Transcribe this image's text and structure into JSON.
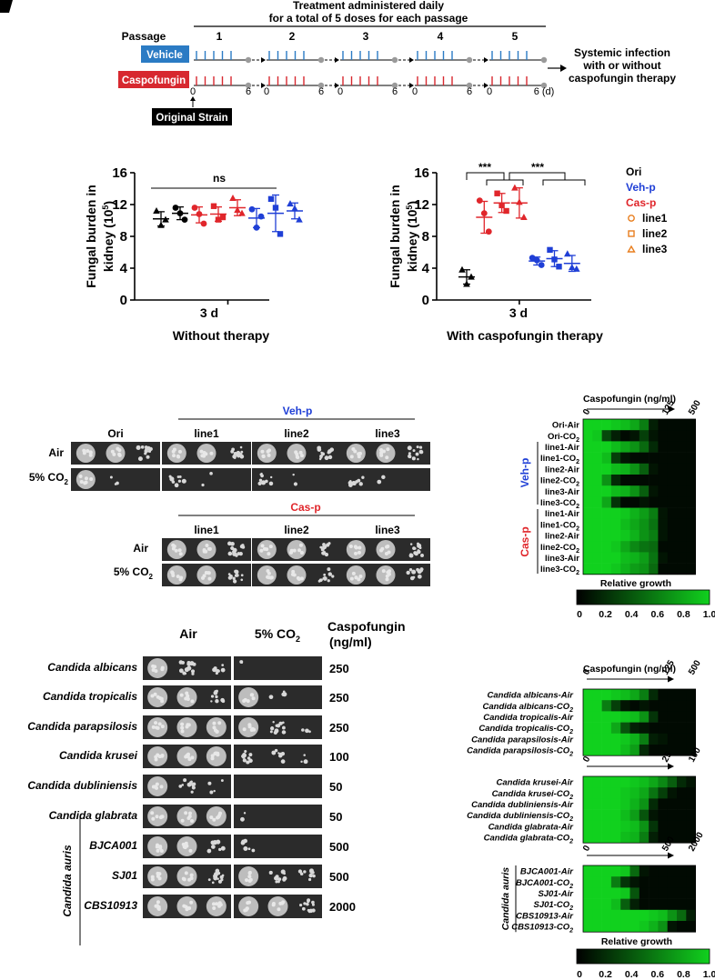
{
  "panel_a": {
    "passage_label": "Passage",
    "header_line1": "Treatment administered daily",
    "header_line2": "for a total of 5 doses for each passage",
    "passages": [
      "1",
      "2",
      "3",
      "4",
      "5"
    ],
    "vehicle_label": "Vehicle",
    "caspofungin_label": "Caspofungin",
    "tick_start": "0",
    "tick_end": "6",
    "tick_end_last": "6 (d)",
    "original_strain": "Original Strain",
    "outcome_line1": "Systemic infection",
    "outcome_line2": "with or without",
    "outcome_line3": "caspofungin therapy",
    "colors": {
      "vehicle": "#2b7bc4",
      "caspofungin": "#d7282f",
      "dot": "#9a9a9a"
    }
  },
  "panel_b": {
    "y_label_line1": "Fungal burden in",
    "y_label_line2": "kidney (10",
    "y_label_sup": "5",
    "y_label_close": ")",
    "ns_label": "ns",
    "sig_label": "***",
    "x_tick": "3 d",
    "left_title": "Without therapy",
    "right_title": "With caspofungin therapy",
    "legend": {
      "ori": "Ori",
      "veh": "Veh-p",
      "cas": "Cas-p",
      "line1": "line1",
      "line2": "line2",
      "line3": "line3"
    },
    "colors": {
      "ori": "#000000",
      "veh": "#1f3fd6",
      "cas": "#e0262b",
      "marker": "#e87e1e"
    }
  },
  "chart_data": [
    {
      "type": "scatter",
      "title": "Without therapy",
      "ylabel": "Fungal burden in kidney (10^5)",
      "xlabel": "3 d",
      "ylim": [
        0,
        16
      ],
      "yticks": [
        0,
        4,
        8,
        12,
        16
      ],
      "groups": [
        {
          "name": "Ori",
          "color": "#000000",
          "points": [
            11.2,
            9.4,
            10.1
          ],
          "mean": 10.2,
          "sd": 0.9
        },
        {
          "name": "Veh-p line1",
          "color": "#000000",
          "points": [
            11.6,
            10.9,
            10.1
          ],
          "mean": 10.9,
          "sd": 0.8
        },
        {
          "name": "Cas-p line1",
          "color": "#e0262b",
          "points": [
            11.6,
            10.8,
            9.6
          ],
          "mean": 10.7,
          "sd": 1.0
        },
        {
          "name": "Cas-p line2",
          "color": "#e0262b",
          "points": [
            11.8,
            10.1,
            10.4
          ],
          "mean": 10.8,
          "sd": 0.9
        },
        {
          "name": "Cas-p line3",
          "color": "#e0262b",
          "points": [
            12.8,
            11.3,
            10.9
          ],
          "mean": 11.6,
          "sd": 1.0
        },
        {
          "name": "Veh-p line1",
          "color": "#1f3fd6",
          "points": [
            11.4,
            9.1,
            10.5
          ],
          "mean": 10.3,
          "sd": 1.2
        },
        {
          "name": "Veh-p line2",
          "color": "#1f3fd6",
          "points": [
            12.7,
            11.6,
            8.3
          ],
          "mean": 10.9,
          "sd": 2.3
        },
        {
          "name": "Veh-p line3",
          "color": "#1f3fd6",
          "points": [
            12.1,
            11.5,
            10.1
          ],
          "mean": 11.2,
          "sd": 1.0
        }
      ],
      "annotation": "ns"
    },
    {
      "type": "scatter",
      "title": "With caspofungin therapy",
      "ylabel": "Fungal burden in kidney (10^5)",
      "xlabel": "3 d",
      "ylim": [
        0,
        16
      ],
      "yticks": [
        0,
        4,
        8,
        12,
        16
      ],
      "groups": [
        {
          "name": "Ori",
          "color": "#000000",
          "points": [
            3.8,
            2.0,
            2.9
          ],
          "mean": 2.9,
          "sd": 0.9
        },
        {
          "name": "Cas-p line1",
          "color": "#e0262b",
          "points": [
            12.5,
            10.9,
            8.6
          ],
          "mean": 10.4,
          "sd": 2.0
        },
        {
          "name": "Cas-p line2",
          "color": "#e0262b",
          "points": [
            13.4,
            11.9,
            11.2
          ],
          "mean": 12.2,
          "sd": 1.2
        },
        {
          "name": "Cas-p line3",
          "color": "#e0262b",
          "points": [
            14.1,
            12.3,
            10.4
          ],
          "mean": 12.2,
          "sd": 1.9
        },
        {
          "name": "Veh-p line1",
          "color": "#1f3fd6",
          "points": [
            5.3,
            5.0,
            4.4
          ],
          "mean": 4.9,
          "sd": 0.5
        },
        {
          "name": "Veh-p line2",
          "color": "#1f3fd6",
          "points": [
            6.3,
            5.1,
            4.2
          ],
          "mean": 5.2,
          "sd": 1.0
        },
        {
          "name": "Veh-p line3",
          "color": "#1f3fd6",
          "points": [
            5.8,
            4.1,
            3.9
          ],
          "mean": 4.6,
          "sd": 1.0
        }
      ],
      "annotation": "***"
    },
    {
      "type": "heatmap",
      "title": "Caspofungin (ng/ml)",
      "x_tick_labels": [
        "0",
        "125",
        "500"
      ],
      "rows": [
        "Ori-Air",
        "Ori-CO2",
        "line1-Air",
        "line1-CO2",
        "line2-Air",
        "line2-CO2",
        "line3-Air",
        "line3-CO2",
        "line1-Air",
        "line1-CO2",
        "line2-Air",
        "line2-CO2",
        "line3-Air",
        "line3-CO2"
      ],
      "row_groups": [
        {
          "name": "Veh-p",
          "rows": [
            2,
            7
          ]
        },
        {
          "name": "Cas-p",
          "rows": [
            8,
            13
          ]
        }
      ],
      "values": [
        [
          1.0,
          1.0,
          1.0,
          0.95,
          0.9,
          0.8,
          0.6,
          0.15,
          0.05,
          0.05,
          0.05,
          0.05
        ],
        [
          1.0,
          0.95,
          0.35,
          0.15,
          0.05,
          0.1,
          0.3,
          0.1,
          0.05,
          0.05,
          0.05,
          0.05
        ],
        [
          1.0,
          1.0,
          1.0,
          0.9,
          0.8,
          0.7,
          0.5,
          0.2,
          0.05,
          0.05,
          0.05,
          0.05
        ],
        [
          1.0,
          1.0,
          0.9,
          0.3,
          0.1,
          0.05,
          0.05,
          0.05,
          0.05,
          0.05,
          0.05,
          0.05
        ],
        [
          1.0,
          1.0,
          1.0,
          0.9,
          0.85,
          0.7,
          0.45,
          0.1,
          0.05,
          0.05,
          0.05,
          0.05
        ],
        [
          1.0,
          1.0,
          0.7,
          0.2,
          0.05,
          0.05,
          0.05,
          0.05,
          0.05,
          0.05,
          0.05,
          0.05
        ],
        [
          1.0,
          1.0,
          1.0,
          0.9,
          0.85,
          0.7,
          0.45,
          0.1,
          0.05,
          0.05,
          0.05,
          0.05
        ],
        [
          1.0,
          1.0,
          0.8,
          0.25,
          0.05,
          0.05,
          0.1,
          0.05,
          0.05,
          0.05,
          0.05,
          0.05
        ],
        [
          1.0,
          1.0,
          1.0,
          1.0,
          0.95,
          0.85,
          0.75,
          0.6,
          0.1,
          0.05,
          0.05,
          0.05
        ],
        [
          1.0,
          1.0,
          1.0,
          1.0,
          0.9,
          0.8,
          0.7,
          0.55,
          0.1,
          0.05,
          0.05,
          0.05
        ],
        [
          1.0,
          1.0,
          1.0,
          1.0,
          0.95,
          0.85,
          0.7,
          0.6,
          0.1,
          0.05,
          0.05,
          0.05
        ],
        [
          1.0,
          1.0,
          1.0,
          0.95,
          0.8,
          0.65,
          0.55,
          0.5,
          0.05,
          0.05,
          0.05,
          0.05
        ],
        [
          1.0,
          1.0,
          1.0,
          1.0,
          0.9,
          0.85,
          0.75,
          0.55,
          0.1,
          0.05,
          0.05,
          0.05
        ],
        [
          1.0,
          1.0,
          1.0,
          0.95,
          0.85,
          0.75,
          0.7,
          0.5,
          0.05,
          0.05,
          0.05,
          0.05
        ]
      ],
      "colorbar": {
        "label": "Relative growth",
        "ticks": [
          "0",
          "0.2",
          "0.4",
          "0.6",
          "0.8",
          "1.0"
        ],
        "range": [
          0,
          1
        ]
      }
    },
    {
      "type": "heatmap",
      "title": "Caspofungin (ng/ml)",
      "blocks": [
        {
          "x_tick_labels": [
            "0",
            "125",
            "500"
          ],
          "rows": [
            "Candida albicans-Air",
            "Candida albicans-CO2",
            "Candida tropicalis-Air",
            "Candida tropicalis-CO2",
            "Candida parapsilosis-Air",
            "Candida parapsilosis-CO2"
          ],
          "values": [
            [
              1.0,
              1.0,
              1.0,
              0.95,
              0.9,
              0.8,
              0.6,
              0.2,
              0.05,
              0.05,
              0.05,
              0.05
            ],
            [
              1.0,
              1.0,
              0.6,
              0.3,
              0.1,
              0.05,
              0.1,
              0.05,
              0.05,
              0.05,
              0.05,
              0.05
            ],
            [
              1.0,
              1.0,
              1.0,
              1.0,
              0.95,
              0.9,
              0.7,
              0.25,
              0.05,
              0.05,
              0.05,
              0.05
            ],
            [
              1.0,
              1.0,
              1.0,
              0.8,
              0.4,
              0.15,
              0.1,
              0.05,
              0.05,
              0.05,
              0.05,
              0.05
            ],
            [
              1.0,
              1.0,
              1.0,
              1.0,
              0.95,
              0.85,
              0.6,
              0.15,
              0.1,
              0.05,
              0.05,
              0.05
            ],
            [
              1.0,
              1.0,
              1.0,
              1.0,
              0.9,
              0.75,
              0.2,
              0.05,
              0.05,
              0.05,
              0.05,
              0.05
            ]
          ]
        },
        {
          "x_tick_labels": [
            "0",
            "25",
            "100"
          ],
          "rows": [
            "Candida krusei-Air",
            "Candida krusei-CO2",
            "Candida dubliniensis-Air",
            "Candida dubliniensis-CO2",
            "Candida glabrata-Air",
            "Candida glabrata-CO2"
          ],
          "values": [
            [
              1.0,
              1.0,
              1.0,
              1.0,
              1.0,
              0.95,
              0.9,
              0.8,
              0.65,
              0.45,
              0.2,
              0.1
            ],
            [
              1.0,
              1.0,
              1.0,
              1.0,
              0.95,
              0.9,
              0.8,
              0.55,
              0.3,
              0.1,
              0.05,
              0.05
            ],
            [
              1.0,
              1.0,
              1.0,
              1.0,
              0.95,
              0.85,
              0.7,
              0.2,
              0.05,
              0.05,
              0.05,
              0.05
            ],
            [
              1.0,
              1.0,
              1.0,
              1.0,
              0.9,
              0.75,
              0.4,
              0.1,
              0.05,
              0.05,
              0.05,
              0.05
            ],
            [
              1.0,
              1.0,
              1.0,
              1.0,
              0.95,
              0.9,
              0.7,
              0.25,
              0.05,
              0.05,
              0.05,
              0.05
            ],
            [
              1.0,
              1.0,
              1.0,
              1.0,
              0.9,
              0.85,
              0.6,
              0.15,
              0.05,
              0.05,
              0.05,
              0.05
            ]
          ]
        },
        {
          "x_tick_labels": [
            "0",
            "500",
            "2000"
          ],
          "group_label": "Candida auris",
          "rows": [
            "BJCA001-Air",
            "BJCA001-CO2",
            "SJ01-Air",
            "SJ01-CO2",
            "CBS10913-Air",
            "CBS10913-CO2"
          ],
          "values": [
            [
              1.0,
              1.0,
              1.0,
              1.0,
              0.95,
              0.5,
              0.1,
              0.05,
              0.05,
              0.05,
              0.05,
              0.05
            ],
            [
              1.0,
              1.0,
              1.0,
              0.6,
              0.25,
              0.1,
              0.05,
              0.05,
              0.05,
              0.05,
              0.05,
              0.05
            ],
            [
              1.0,
              1.0,
              1.0,
              1.0,
              0.95,
              0.4,
              0.05,
              0.05,
              0.05,
              0.05,
              0.05,
              0.05
            ],
            [
              1.0,
              1.0,
              1.0,
              0.9,
              0.45,
              0.15,
              0.05,
              0.05,
              0.05,
              0.05,
              0.05,
              0.05
            ],
            [
              1.0,
              1.0,
              1.0,
              1.0,
              1.0,
              1.0,
              1.0,
              0.95,
              0.9,
              0.7,
              0.5,
              0.15
            ],
            [
              1.0,
              1.0,
              1.0,
              1.0,
              1.0,
              1.0,
              0.95,
              0.85,
              0.7,
              0.1,
              0.05,
              0.05
            ]
          ]
        }
      ],
      "colorbar": {
        "label": "Relative growth",
        "ticks": [
          "0",
          "0.2",
          "0.4",
          "0.6",
          "0.8",
          "1.0"
        ],
        "range": [
          0,
          1
        ]
      }
    }
  ],
  "panel_c": {
    "ori_label": "Ori",
    "veh_header": "Veh-p",
    "cas_header": "Cas-p",
    "lines": [
      "line1",
      "line2",
      "line3"
    ],
    "air_label": "Air",
    "co2_label": "5% CO",
    "co2_sub": "2",
    "heatmap_title": "Caspofungin (ng/ml)",
    "heatmap_ticks": [
      "0",
      "125",
      "500"
    ],
    "heatmap_rows": [
      "Ori-Air",
      "Ori-CO",
      "line1-Air",
      "line1-CO",
      "line2-Air",
      "line2-CO",
      "line3-Air",
      "line3-CO",
      "line1-Air",
      "line1-CO",
      "line2-Air",
      "line2-CO",
      "line3-Air",
      "line3-CO"
    ],
    "heatmap_row_co2": [
      false,
      true,
      false,
      true,
      false,
      true,
      false,
      true,
      false,
      true,
      false,
      true,
      false,
      true
    ],
    "heatmap_group_veh": "Veh-p",
    "heatmap_group_cas": "Cas-p",
    "colorbar_label": "Relative growth",
    "colorbar_ticks": [
      "0",
      "0.2",
      "0.4",
      "0.6",
      "0.8",
      "1.0"
    ]
  },
  "panel_d": {
    "air_header": "Air",
    "co2_header": "5% CO",
    "co2_sub": "2",
    "caspofungin_header": "Caspofungin",
    "caspofungin_unit": "(ng/ml)",
    "species": [
      {
        "name": "Candida albicans",
        "conc": "250"
      },
      {
        "name": "Candida tropicalis",
        "conc": "250"
      },
      {
        "name": "Candida parapsilosis",
        "conc": "250"
      },
      {
        "name": "Candida krusei",
        "conc": "100"
      },
      {
        "name": "Candida dubliniensis",
        "conc": "50"
      },
      {
        "name": "Candida glabrata",
        "conc": "50"
      },
      {
        "name": "BJCA001",
        "conc": "500"
      },
      {
        "name": "SJ01",
        "conc": "500"
      },
      {
        "name": "CBS10913",
        "conc": "2000"
      }
    ],
    "auris_label": "Candida auris",
    "heatmap_title": "Caspofungin (ng/ml)",
    "block_ticks": [
      [
        "0",
        "125",
        "500"
      ],
      [
        "0",
        "25",
        "100"
      ],
      [
        "0",
        "500",
        "2000"
      ]
    ],
    "block_rows": [
      [
        "Candida albicans-Air",
        "Candida albicans-CO",
        "Candida tropicalis-Air",
        "Candida tropicalis-CO",
        "Candida parapsilosis-Air",
        "Candida parapsilosis-CO"
      ],
      [
        "Candida krusei-Air",
        "Candida krusei-CO",
        "Candida dubliniensis-Air",
        "Candida dubliniensis-CO",
        "Candida glabrata-Air",
        "Candida glabrata-CO"
      ],
      [
        "BJCA001-Air",
        "BJCA001-CO",
        "SJ01-Air",
        "SJ01-CO",
        "CBS10913-Air",
        "CBS10913-CO"
      ]
    ],
    "colorbar_label": "Relative growth",
    "colorbar_ticks": [
      "0",
      "0.2",
      "0.4",
      "0.6",
      "0.8",
      "1.0"
    ]
  }
}
